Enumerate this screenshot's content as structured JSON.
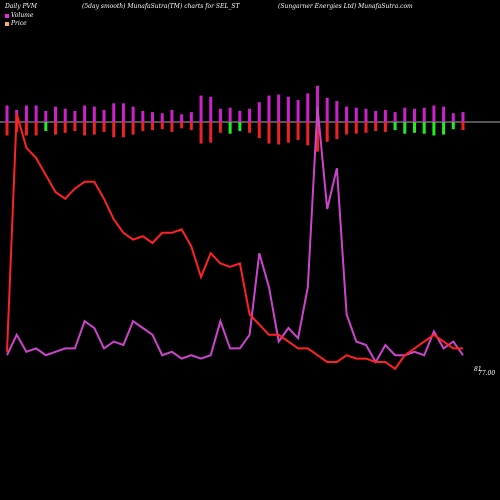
{
  "header": {
    "left": "Daily PVM",
    "mid": "(5day smooth) MunafaSutra(TM) charts for SEL_ST",
    "right": "(Sungarner Energies Ltd) MunafaSutra.com"
  },
  "legend": [
    {
      "label": "Volume",
      "color": "#ee22ee"
    },
    {
      "label": "Price",
      "color": "#ffaa66"
    }
  ],
  "end_labels": {
    "volume": "81",
    "price": "77.00"
  },
  "colors": {
    "price_line": "#ff2222",
    "volume_line": "#cc44cc",
    "bar_up": "#cc22cc",
    "bar_down": "#ee2222",
    "bar_green": "#22ee22",
    "baseline": "#aaaaaa"
  },
  "chart_data": {
    "type": "line",
    "series": [
      {
        "name": "Price",
        "values": [
          83,
          153,
          143,
          140,
          135,
          130,
          128,
          131,
          133,
          133,
          128,
          122,
          118,
          116,
          117,
          115,
          118,
          118,
          119,
          114,
          105,
          112,
          109,
          108,
          109,
          94,
          91,
          88,
          88,
          86,
          84,
          84,
          82,
          80,
          80,
          82,
          81,
          81,
          80,
          80,
          78,
          82,
          84,
          86,
          88,
          86,
          84,
          84
        ]
      },
      {
        "name": "Volume",
        "values": [
          82,
          88,
          83,
          84,
          82,
          83,
          84,
          84,
          92,
          90,
          84,
          86,
          85,
          92,
          90,
          88,
          82,
          83,
          81,
          82,
          81,
          82,
          92,
          84,
          84,
          88,
          112,
          102,
          86,
          90,
          87,
          102,
          155,
          125,
          137,
          94,
          86,
          85,
          80,
          85,
          82,
          82,
          83,
          82,
          89,
          84,
          86,
          82
        ]
      }
    ],
    "bars": {
      "heights": [
        30,
        22,
        30,
        30,
        20,
        28,
        24,
        20,
        30,
        28,
        22,
        34,
        34,
        28,
        20,
        18,
        16,
        22,
        14,
        18,
        48,
        46,
        24,
        26,
        20,
        24,
        36,
        48,
        50,
        46,
        40,
        52,
        66,
        44,
        38,
        28,
        26,
        24,
        20,
        22,
        18,
        26,
        24,
        26,
        30,
        28,
        16,
        18
      ],
      "directions": [
        "red",
        "red",
        "red",
        "red",
        "green",
        "red",
        "red",
        "red",
        "red",
        "red",
        "red",
        "red",
        "red",
        "red",
        "red",
        "red",
        "red",
        "red",
        "red",
        "red",
        "red",
        "red",
        "red",
        "green",
        "green",
        "red",
        "red",
        "red",
        "red",
        "red",
        "red",
        "red",
        "red",
        "red",
        "red",
        "red",
        "red",
        "red",
        "red",
        "red",
        "green",
        "green",
        "green",
        "green",
        "green",
        "green",
        "green",
        "red"
      ]
    },
    "title": "",
    "xlabel": "",
    "ylabel": ""
  }
}
